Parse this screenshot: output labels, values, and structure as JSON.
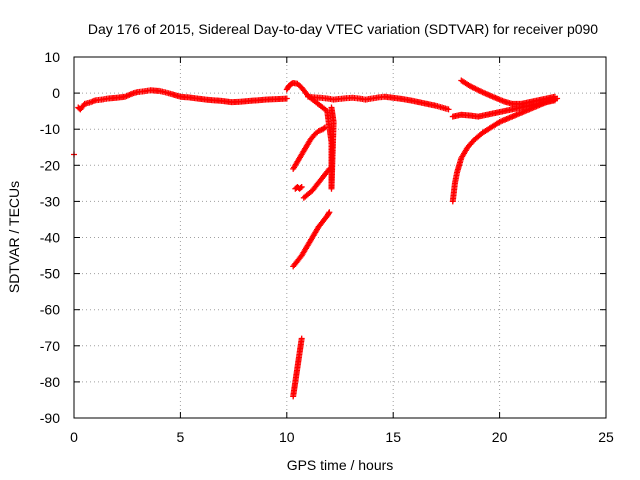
{
  "chart_data": {
    "type": "scatter",
    "title": "Day 176 of 2015, Sidereal Day-to-day VTEC variation (SDTVAR) for receiver p090",
    "xlabel": "GPS time / hours",
    "ylabel": "SDTVAR / TECUs",
    "xlim": [
      0,
      25
    ],
    "ylim": [
      -90,
      10
    ],
    "xticks": [
      "0",
      "5",
      "10",
      "15",
      "20",
      "25"
    ],
    "yticks": [
      "10",
      "0",
      "-10",
      "-20",
      "-30",
      "-40",
      "-50",
      "-60",
      "-70",
      "-80",
      "-90"
    ],
    "grid": true,
    "marker": "plus",
    "color": "#ff0000",
    "segments": [
      {
        "x": [
          0.0
        ],
        "y": [
          -17
        ]
      },
      {
        "x": [
          0.2,
          0.3,
          0.5,
          0.8,
          1.0,
          1.3,
          1.6,
          2.0,
          2.4,
          2.8,
          3.0,
          3.3,
          3.6,
          4.0,
          4.3,
          4.6,
          5.0,
          5.4,
          5.8,
          6.2,
          6.6,
          7.0,
          7.4,
          7.8,
          8.2,
          8.6,
          9.0,
          9.4,
          9.8,
          10.0
        ],
        "y": [
          -4,
          -4.5,
          -3,
          -2.5,
          -2,
          -1.8,
          -1.5,
          -1.3,
          -1.0,
          0.0,
          0.3,
          0.5,
          0.8,
          0.6,
          0.2,
          -0.3,
          -1.0,
          -1.2,
          -1.5,
          -1.8,
          -2.0,
          -2.2,
          -2.5,
          -2.4,
          -2.2,
          -2.0,
          -1.8,
          -1.7,
          -1.6,
          -1.5
        ]
      },
      {
        "x": [
          10.0,
          10.1,
          10.2,
          10.3,
          10.5,
          10.7,
          10.9,
          11.0
        ],
        "y": [
          1.0,
          2.0,
          2.5,
          2.8,
          2.6,
          1.5,
          0.0,
          -0.8
        ]
      },
      {
        "x": [
          11.0,
          11.3,
          11.6,
          11.9,
          12.2,
          12.5,
          12.8,
          13.1,
          13.4,
          13.7,
          14.0,
          14.3,
          14.6,
          15.0,
          15.4,
          15.8,
          16.2,
          16.6,
          17.0,
          17.3,
          17.6
        ],
        "y": [
          -1.0,
          -1.2,
          -1.3,
          -1.5,
          -1.8,
          -1.6,
          -1.4,
          -1.3,
          -1.5,
          -1.8,
          -1.5,
          -1.2,
          -1.0,
          -1.3,
          -1.6,
          -2.0,
          -2.5,
          -3.0,
          -3.5,
          -4.0,
          -4.5
        ]
      },
      {
        "x": [
          17.8,
          18.2,
          18.6,
          19.0,
          19.4,
          19.8,
          20.2,
          20.6,
          21.0,
          21.4,
          21.8,
          22.2,
          22.6
        ],
        "y": [
          -6.5,
          -6.0,
          -6.2,
          -6.5,
          -6.0,
          -5.5,
          -5.0,
          -4.5,
          -4.0,
          -3.5,
          -3.0,
          -2.5,
          -2.0
        ]
      },
      {
        "x": [
          18.2,
          18.6,
          19.0,
          19.4,
          19.8,
          20.2,
          20.6,
          21.0,
          21.4,
          21.8,
          22.2,
          22.6
        ],
        "y": [
          3.5,
          2.0,
          0.8,
          -0.3,
          -1.3,
          -2.3,
          -3.0,
          -3.0,
          -2.5,
          -2.0,
          -1.5,
          -1.0
        ]
      },
      {
        "x": [
          17.8,
          17.9,
          18.0,
          18.2,
          18.5,
          18.8,
          19.2,
          19.6,
          20.0,
          20.4,
          20.8,
          21.2,
          21.6,
          22.0,
          22.4,
          22.7
        ],
        "y": [
          -30,
          -25,
          -22,
          -18,
          -15,
          -13,
          -11,
          -9.5,
          -8,
          -7,
          -6,
          -5,
          -4,
          -3,
          -2,
          -1.5
        ]
      },
      {
        "x": [
          10.3,
          10.5,
          10.7,
          10.9,
          11.1,
          11.3,
          11.5,
          11.7,
          11.8
        ],
        "y": [
          -21,
          -19,
          -17,
          -15,
          -13,
          -11.5,
          -10.5,
          -10,
          -9.5
        ]
      },
      {
        "x": [
          10.4,
          10.5,
          10.6,
          10.7
        ],
        "y": [
          -26.5,
          -26.0,
          -26.5,
          -26.0
        ]
      },
      {
        "x": [
          10.8,
          11.0,
          11.2,
          11.4,
          11.6,
          11.8,
          12.0
        ],
        "y": [
          -29,
          -28,
          -27,
          -25.5,
          -24,
          -22.5,
          -21
        ]
      },
      {
        "x": [
          10.3,
          10.5,
          10.7,
          10.9,
          11.1,
          11.3,
          11.5,
          11.7,
          11.9,
          12.0
        ],
        "y": [
          -48,
          -46.5,
          -45,
          -43,
          -41,
          -39,
          -37,
          -35.5,
          -34,
          -33
        ]
      },
      {
        "x": [
          10.3,
          10.4,
          10.5,
          10.6,
          10.7
        ],
        "y": [
          -84,
          -80,
          -76,
          -72,
          -68
        ]
      },
      {
        "x": [
          11.0,
          11.9,
          12.0,
          12.1,
          12.1,
          12.2,
          12.1
        ],
        "y": [
          -0.8,
          -5.0,
          -9.5,
          -13.5,
          -26.5,
          -8.0,
          -4.0
        ]
      }
    ]
  }
}
